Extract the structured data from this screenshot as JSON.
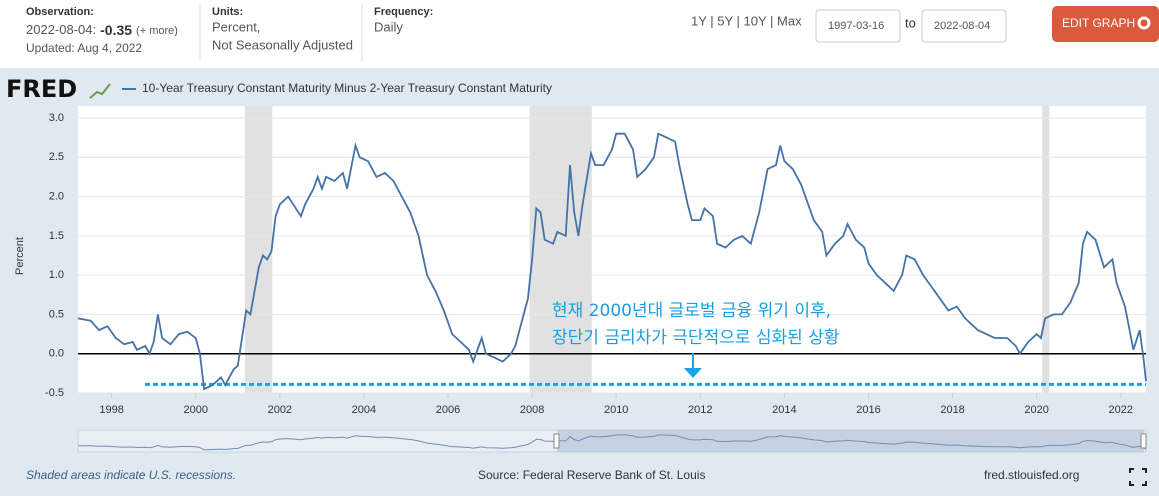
{
  "header": {
    "observation_label": "Observation:",
    "observation_date": "2022-08-04:",
    "observation_value": -0.35,
    "more": "(+ more)",
    "updated": "Updated: Aug 4, 2022",
    "units_label": "Units:",
    "units_1": "Percent,",
    "units_2": "Not Seasonally Adjusted",
    "frequency_label": "Frequency:",
    "frequency": "Daily",
    "ranges": "1Y | 5Y | 10Y | Max",
    "start": "1997-03-16",
    "to": "to",
    "end": "2022-08-04",
    "edit": "EDIT GRAPH"
  },
  "logo": "FRED",
  "footer": {
    "note": "Shaded areas indicate U.S. recessions.",
    "source": "Source: Federal Reserve Bank of St. Louis",
    "site": "fred.stlouisfed.org"
  },
  "annotation": [
    "현재 2000년대 글로벌 금융 위기 이후,",
    "장단기 금리차가 극단적으로 심화된 상황"
  ],
  "chart_data": {
    "type": "line",
    "ylabel": "Percent",
    "x": [
      1997.2,
      1997.5,
      1997.7,
      1997.9,
      1998.1,
      1998.3,
      1998.5,
      1998.6,
      1998.8,
      1998.9,
      1999.0,
      1999.1,
      1999.2,
      1999.4,
      1999.6,
      1999.8,
      2000.0,
      2000.1,
      2000.2,
      2000.4,
      2000.6,
      2000.7,
      2000.9,
      2001.0,
      2001.2,
      2001.3,
      2001.5,
      2001.6,
      2001.7,
      2001.8,
      2001.9,
      2002.0,
      2002.2,
      2002.5,
      2002.6,
      2002.8,
      2002.9,
      2003.0,
      2003.1,
      2003.3,
      2003.5,
      2003.6,
      2003.8,
      2003.9,
      2004.1,
      2004.3,
      2004.5,
      2004.7,
      2004.9,
      2005.1,
      2005.3,
      2005.5,
      2005.7,
      2005.9,
      2006.1,
      2006.3,
      2006.5,
      2006.6,
      2006.8,
      2006.9,
      2007.1,
      2007.3,
      2007.5,
      2007.6,
      2007.7,
      2007.9,
      2008.0,
      2008.1,
      2008.2,
      2008.3,
      2008.5,
      2008.6,
      2008.8,
      2008.9,
      2009.0,
      2009.1,
      2009.2,
      2009.4,
      2009.5,
      2009.7,
      2009.9,
      2010.0,
      2010.2,
      2010.4,
      2010.5,
      2010.7,
      2010.9,
      2011.0,
      2011.2,
      2011.4,
      2011.5,
      2011.7,
      2011.8,
      2012.0,
      2012.1,
      2012.3,
      2012.4,
      2012.6,
      2012.8,
      2013.0,
      2013.2,
      2013.4,
      2013.6,
      2013.8,
      2013.9,
      2014.0,
      2014.2,
      2014.4,
      2014.5,
      2014.7,
      2014.9,
      2015.0,
      2015.2,
      2015.4,
      2015.5,
      2015.7,
      2015.9,
      2016.0,
      2016.2,
      2016.4,
      2016.6,
      2016.8,
      2016.9,
      2017.1,
      2017.3,
      2017.5,
      2017.7,
      2017.9,
      2018.1,
      2018.3,
      2018.6,
      2018.8,
      2019.0,
      2019.3,
      2019.5,
      2019.6,
      2019.8,
      2020.0,
      2020.1,
      2020.2,
      2020.4,
      2020.6,
      2020.8,
      2021.0,
      2021.1,
      2021.2,
      2021.4,
      2021.6,
      2021.8,
      2021.9,
      2022.1,
      2022.3,
      2022.45,
      2022.55,
      2022.6
    ],
    "series": [
      {
        "name": "10-Year Treasury Constant Maturity Minus 2-Year Treasury Constant Maturity",
        "color": "#4572a7",
        "values": [
          0.45,
          0.42,
          0.3,
          0.35,
          0.2,
          0.12,
          0.15,
          0.05,
          0.1,
          0.0,
          0.15,
          0.5,
          0.2,
          0.12,
          0.25,
          0.28,
          0.2,
          0.0,
          -0.45,
          -0.4,
          -0.3,
          -0.4,
          -0.2,
          -0.15,
          0.55,
          0.5,
          1.1,
          1.25,
          1.2,
          1.3,
          1.75,
          1.9,
          2.0,
          1.75,
          1.9,
          2.1,
          2.25,
          2.1,
          2.25,
          2.2,
          2.3,
          2.1,
          2.65,
          2.5,
          2.45,
          2.25,
          2.3,
          2.2,
          2.0,
          1.8,
          1.5,
          1.0,
          0.8,
          0.55,
          0.25,
          0.15,
          0.05,
          -0.1,
          0.2,
          0.0,
          -0.05,
          -0.1,
          0.0,
          0.1,
          0.3,
          0.7,
          1.2,
          1.85,
          1.8,
          1.45,
          1.4,
          1.55,
          1.5,
          2.4,
          1.8,
          1.5,
          1.9,
          2.55,
          2.4,
          2.4,
          2.6,
          2.8,
          2.8,
          2.6,
          2.25,
          2.35,
          2.5,
          2.8,
          2.75,
          2.7,
          2.4,
          1.9,
          1.7,
          1.7,
          1.85,
          1.75,
          1.4,
          1.35,
          1.45,
          1.5,
          1.4,
          1.8,
          2.35,
          2.4,
          2.65,
          2.45,
          2.35,
          2.15,
          2.0,
          1.7,
          1.55,
          1.25,
          1.4,
          1.5,
          1.65,
          1.45,
          1.35,
          1.15,
          1.0,
          0.9,
          0.8,
          1.0,
          1.25,
          1.2,
          1.0,
          0.85,
          0.7,
          0.55,
          0.6,
          0.45,
          0.3,
          0.25,
          0.2,
          0.2,
          0.1,
          0.0,
          0.15,
          0.25,
          0.2,
          0.45,
          0.5,
          0.5,
          0.65,
          0.9,
          1.4,
          1.55,
          1.45,
          1.1,
          1.2,
          0.9,
          0.6,
          0.05,
          0.3,
          -0.1,
          -0.35
        ]
      }
    ],
    "xlim": [
      1997.2,
      2022.6
    ],
    "xticks": [
      1998,
      2000,
      2002,
      2004,
      2006,
      2008,
      2010,
      2012,
      2014,
      2016,
      2018,
      2020,
      2022
    ],
    "ylim": [
      -0.5,
      3.0
    ],
    "yticks": [
      -0.5,
      {
        "value": 0,
        "label": "0.0"
      },
      0.5,
      {
        "value": 1,
        "label": "1.0"
      },
      1.5,
      {
        "value": 2,
        "label": "2.0"
      },
      2.5,
      {
        "value": 3,
        "label": "3.0"
      }
    ],
    "grid": true,
    "recessions": [
      [
        2001.17,
        2001.82
      ],
      [
        2007.94,
        2009.42
      ],
      [
        2020.13,
        2020.3
      ]
    ],
    "reference_lines": [
      {
        "value": 0,
        "color": "#000000",
        "dashed": false
      },
      {
        "value": -0.39,
        "color": "#1aa3e8",
        "dashed": true
      }
    ]
  }
}
